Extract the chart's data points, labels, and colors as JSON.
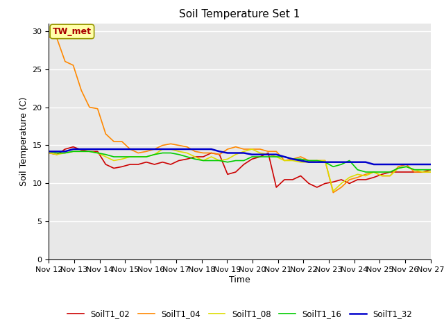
{
  "title": "Soil Temperature Set 1",
  "xlabel": "Time",
  "ylabel": "Soil Temperature (C)",
  "ylim": [
    0,
    31
  ],
  "yticks": [
    0,
    5,
    10,
    15,
    20,
    25,
    30
  ],
  "x_labels": [
    "Nov 12",
    "Nov 13",
    "Nov 14",
    "Nov 15",
    "Nov 16",
    "Nov 17",
    "Nov 18",
    "Nov 19",
    "Nov 20",
    "Nov 21",
    "Nov 22",
    "Nov 23",
    "Nov 24",
    "Nov 25",
    "Nov 26",
    "Nov 27"
  ],
  "annotation_text": "TW_met",
  "annotation_color": "#aa0000",
  "annotation_bg": "#ffffaa",
  "annotation_border": "#999900",
  "fig_bg_color": "#ffffff",
  "plot_bg_color": "#e8e8e8",
  "grid_color": "#ffffff",
  "series": {
    "SoilT1_02": {
      "color": "#cc0000",
      "lw": 1.2,
      "data": [
        14.0,
        13.8,
        14.5,
        14.8,
        14.4,
        14.2,
        14.2,
        12.5,
        12.0,
        12.2,
        12.5,
        12.5,
        12.8,
        12.5,
        12.8,
        12.5,
        13.0,
        13.2,
        13.5,
        13.5,
        14.0,
        13.8,
        11.2,
        11.5,
        12.5,
        13.2,
        13.5,
        14.0,
        9.5,
        10.5,
        10.5,
        11.0,
        10.0,
        9.5,
        10.0,
        10.2,
        10.5,
        10.0,
        10.5,
        10.5,
        10.8,
        11.2,
        11.5,
        11.5,
        11.5,
        11.5,
        11.5,
        11.8
      ]
    },
    "SoilT1_04": {
      "color": "#ff8800",
      "lw": 1.2,
      "data": [
        29.2,
        29.0,
        26.0,
        25.5,
        22.2,
        20.0,
        19.8,
        16.5,
        15.5,
        15.5,
        14.5,
        14.0,
        14.2,
        14.5,
        15.0,
        15.2,
        15.0,
        14.8,
        14.2,
        14.0,
        14.0,
        13.8,
        14.5,
        14.8,
        14.5,
        14.5,
        14.5,
        14.2,
        14.2,
        13.0,
        13.2,
        13.5,
        13.0,
        13.0,
        13.0,
        8.8,
        9.5,
        10.5,
        10.8,
        11.2,
        11.5,
        11.0,
        11.0,
        12.2,
        12.5,
        11.5,
        11.5,
        11.5
      ]
    },
    "SoilT1_08": {
      "color": "#dddd00",
      "lw": 1.2,
      "data": [
        14.0,
        13.8,
        14.0,
        14.2,
        14.2,
        14.2,
        14.0,
        13.5,
        13.0,
        13.2,
        13.5,
        13.5,
        13.5,
        13.8,
        14.5,
        14.5,
        14.2,
        14.0,
        13.5,
        13.0,
        13.5,
        13.0,
        13.2,
        13.8,
        14.2,
        14.5,
        14.0,
        13.8,
        13.5,
        13.0,
        13.0,
        12.8,
        12.8,
        13.0,
        13.0,
        9.0,
        10.0,
        10.8,
        11.2,
        11.0,
        11.5,
        11.0,
        11.0,
        12.0,
        12.2,
        11.8,
        11.5,
        11.5
      ]
    },
    "SoilT1_16": {
      "color": "#00cc00",
      "lw": 1.2,
      "data": [
        14.2,
        14.0,
        14.0,
        14.2,
        14.2,
        14.2,
        14.0,
        13.8,
        13.5,
        13.5,
        13.5,
        13.5,
        13.5,
        13.8,
        14.0,
        14.0,
        13.8,
        13.5,
        13.2,
        13.0,
        13.0,
        13.0,
        12.8,
        13.0,
        13.0,
        13.5,
        13.5,
        13.5,
        13.5,
        13.5,
        13.2,
        13.2,
        13.0,
        13.0,
        12.8,
        12.2,
        12.5,
        13.0,
        11.8,
        11.5,
        11.5,
        11.5,
        11.5,
        12.0,
        12.2,
        11.8,
        11.8,
        11.8
      ]
    },
    "SoilT1_32": {
      "color": "#0000cc",
      "lw": 1.8,
      "data": [
        14.2,
        14.2,
        14.2,
        14.5,
        14.5,
        14.5,
        14.5,
        14.5,
        14.5,
        14.5,
        14.5,
        14.5,
        14.5,
        14.5,
        14.5,
        14.5,
        14.5,
        14.5,
        14.5,
        14.5,
        14.5,
        14.2,
        14.0,
        14.0,
        14.0,
        13.8,
        13.8,
        13.8,
        13.8,
        13.5,
        13.2,
        13.0,
        12.8,
        12.8,
        12.8,
        12.8,
        12.8,
        12.8,
        12.8,
        12.8,
        12.5,
        12.5,
        12.5,
        12.5,
        12.5,
        12.5,
        12.5,
        12.5
      ]
    }
  }
}
